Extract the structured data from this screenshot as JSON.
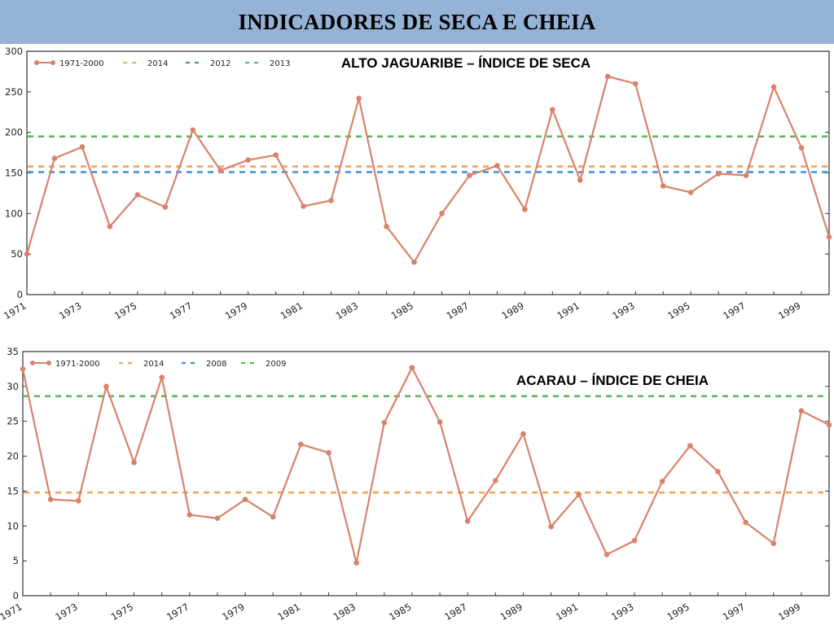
{
  "header": {
    "title": "INDICADORES DE SECA E CHEIA"
  },
  "colors": {
    "banner": "#95b3d7",
    "series": "#d9826a",
    "ref_orange": "#f5a25d",
    "ref_blue": "#3f8fdc",
    "ref_green": "#5cb85c"
  },
  "chart_data": [
    {
      "type": "line",
      "title": "ALTO JAGUARIBE – ÍNDICE DE SECA",
      "xlabel": "",
      "ylabel": "",
      "xlim": [
        1971,
        2000
      ],
      "ylim": [
        0,
        300
      ],
      "yticks": [
        0,
        50,
        100,
        150,
        200,
        250,
        300
      ],
      "xticks": [
        1971,
        1973,
        1975,
        1977,
        1979,
        1981,
        1983,
        1985,
        1987,
        1989,
        1991,
        1993,
        1995,
        1997,
        1999
      ],
      "grid": false,
      "legend_position": "top-left",
      "series": [
        {
          "name": "1971-2000",
          "x": [
            1971,
            1972,
            1973,
            1974,
            1975,
            1976,
            1977,
            1978,
            1979,
            1980,
            1981,
            1982,
            1983,
            1984,
            1985,
            1986,
            1987,
            1988,
            1989,
            1990,
            1991,
            1992,
            1993,
            1994,
            1995,
            1996,
            1997,
            1998,
            1999,
            2000
          ],
          "values": [
            50,
            168,
            182,
            84,
            123,
            108,
            203,
            153,
            166,
            172,
            109,
            116,
            242,
            84,
            40,
            100,
            147,
            159,
            105,
            228,
            141,
            269,
            260,
            134,
            126,
            149,
            147,
            256,
            181,
            71
          ]
        }
      ],
      "reference_lines": [
        {
          "name": "2014",
          "value": 158,
          "color": "#f5a25d"
        },
        {
          "name": "2012",
          "value": 151,
          "color": "#3f8fdc"
        },
        {
          "name": "2013",
          "value": 195,
          "color": "#5cb85c"
        }
      ]
    },
    {
      "type": "line",
      "title": "ACARAU – ÍNDICE DE CHEIA",
      "xlabel": "",
      "ylabel": "",
      "xlim": [
        1971,
        2000
      ],
      "ylim": [
        0,
        35
      ],
      "yticks": [
        0,
        5,
        10,
        15,
        20,
        25,
        30,
        35
      ],
      "xticks": [
        1971,
        1973,
        1975,
        1977,
        1979,
        1981,
        1983,
        1985,
        1987,
        1989,
        1991,
        1993,
        1995,
        1997,
        1999
      ],
      "grid": false,
      "legend_position": "top-left",
      "series": [
        {
          "name": "1971-2000",
          "x": [
            1971,
            1972,
            1973,
            1974,
            1975,
            1976,
            1977,
            1978,
            1979,
            1980,
            1981,
            1982,
            1983,
            1984,
            1985,
            1986,
            1987,
            1988,
            1989,
            1990,
            1991,
            1992,
            1993,
            1994,
            1995,
            1996,
            1997,
            1998,
            1999,
            2000
          ],
          "values": [
            32.5,
            13.8,
            13.6,
            30.0,
            19.1,
            31.3,
            11.6,
            11.1,
            13.8,
            11.3,
            21.7,
            20.5,
            4.7,
            24.8,
            32.7,
            24.9,
            10.7,
            16.5,
            23.2,
            9.9,
            14.5,
            5.9,
            7.9,
            16.4,
            21.5,
            17.8,
            10.5,
            7.5,
            26.5,
            24.5
          ]
        }
      ],
      "reference_lines": [
        {
          "name": "2014",
          "value": 14.8,
          "color": "#f5a25d"
        },
        {
          "name": "2008",
          "value": null,
          "color": "#3f8fdc"
        },
        {
          "name": "2009",
          "value": 28.6,
          "color": "#5cb85c"
        }
      ]
    }
  ]
}
